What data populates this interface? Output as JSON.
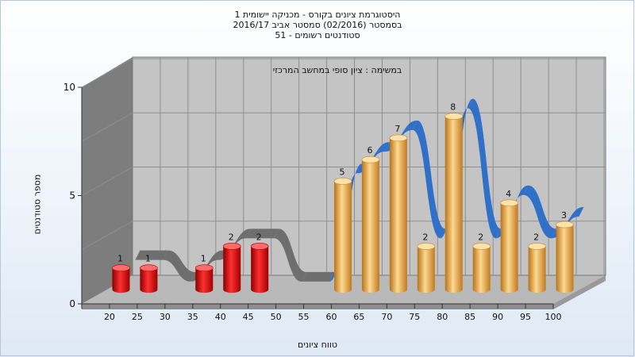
{
  "titles": {
    "line1": "היסטוגרמת ציונים בקורס - מכניקה יישומית 1",
    "line2": "בסמסטר  (02/2016)  סמסטר אביב 2016/17",
    "line3": "סטודנטים רשומים - 51"
  },
  "chart_data": {
    "type": "bar",
    "title": "במשימה : ציון סופי במחשב המרכזי",
    "xlabel": "טווח ציונים",
    "ylabel": "מספר סטודנטים",
    "ylim": [
      0,
      10
    ],
    "yticks": [
      "0",
      "5",
      "10"
    ],
    "categories": [
      "20",
      "25",
      "30",
      "35",
      "40",
      "45",
      "50",
      "55",
      "60",
      "65",
      "70",
      "75",
      "80",
      "85",
      "90",
      "95",
      "100"
    ],
    "series": [
      {
        "values": [
          1,
          1,
          0,
          1,
          2,
          2,
          0,
          0,
          5,
          6,
          7,
          2,
          8,
          2,
          4,
          2,
          3
        ],
        "colors": [
          "#e02020",
          "#e02020",
          "#e02020",
          "#e02020",
          "#e02020",
          "#e02020",
          "#e02020",
          "#e02020",
          "#f0a840",
          "#f0a840",
          "#f0a840",
          "#f0a840",
          "#f0a840",
          "#f0a840",
          "#f0a840",
          "#f0a840",
          "#f0a840"
        ]
      }
    ],
    "curve_colors": {
      "low": "#6e6e6e",
      "high": "#3170c8"
    },
    "grid": true,
    "legend": "none"
  }
}
